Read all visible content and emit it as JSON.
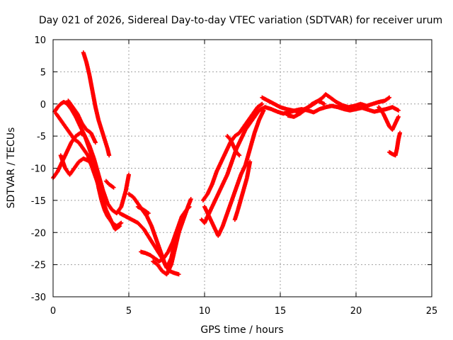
{
  "chart_data": {
    "type": "scatter",
    "title": "Day 021 of 2026, Sidereal Day-to-day VTEC variation (SDTVAR) for receiver urum",
    "xlabel": "GPS time / hours",
    "ylabel": "SDTVAR / TECUs",
    "xlim": [
      0,
      25
    ],
    "ylim": [
      -30,
      10
    ],
    "xticks": [
      "0",
      "5",
      "10",
      "15",
      "20",
      "25"
    ],
    "yticks": [
      "10",
      "5",
      "0",
      "-5",
      "-10",
      "-15",
      "-20",
      "-25",
      "-30"
    ],
    "grid": true,
    "legend": "none",
    "marker": "plus",
    "color": "#ff0000",
    "series": [
      {
        "values": [
          [
            2.0,
            8.0
          ],
          [
            2.2,
            6.5
          ],
          [
            2.4,
            4.5
          ],
          [
            2.6,
            2.0
          ],
          [
            2.8,
            -0.5
          ],
          [
            3.0,
            -2.5
          ],
          [
            3.2,
            -4.0
          ],
          [
            3.4,
            -5.5
          ],
          [
            3.6,
            -7.0
          ],
          [
            3.7,
            -8.0
          ]
        ]
      },
      {
        "values": [
          [
            0.1,
            -1.2
          ],
          [
            0.3,
            -0.5
          ],
          [
            0.5,
            0.0
          ],
          [
            0.7,
            0.3
          ],
          [
            0.9,
            0.1
          ],
          [
            1.2,
            -0.8
          ],
          [
            1.5,
            -2.0
          ],
          [
            1.8,
            -3.5
          ],
          [
            2.1,
            -5.0
          ],
          [
            2.4,
            -7.0
          ],
          [
            2.7,
            -9.0
          ],
          [
            2.9,
            -11.0
          ],
          [
            3.0,
            -13.0
          ],
          [
            3.2,
            -15.0
          ],
          [
            3.4,
            -16.5
          ],
          [
            3.6,
            -17.5
          ],
          [
            3.9,
            -18.5
          ],
          [
            4.2,
            -19.0
          ],
          [
            4.5,
            -18.5
          ]
        ]
      },
      {
        "values": [
          [
            0.0,
            -11.5
          ],
          [
            0.3,
            -10.5
          ],
          [
            0.6,
            -9.0
          ],
          [
            0.9,
            -7.5
          ],
          [
            1.2,
            -6.0
          ],
          [
            1.5,
            -5.0
          ],
          [
            1.8,
            -4.5
          ],
          [
            2.1,
            -5.0
          ],
          [
            2.4,
            -6.5
          ],
          [
            2.7,
            -8.5
          ],
          [
            3.0,
            -11.0
          ],
          [
            3.3,
            -13.5
          ],
          [
            3.6,
            -15.5
          ],
          [
            3.9,
            -16.5
          ],
          [
            4.2,
            -17.0
          ],
          [
            4.5,
            -16.0
          ],
          [
            4.8,
            -13.5
          ],
          [
            5.0,
            -11.0
          ]
        ]
      },
      {
        "values": [
          [
            0.2,
            -1.5
          ],
          [
            0.5,
            -2.5
          ],
          [
            0.8,
            -3.5
          ],
          [
            1.1,
            -4.5
          ],
          [
            1.4,
            -5.5
          ],
          [
            1.7,
            -6.0
          ],
          [
            2.0,
            -7.0
          ],
          [
            2.3,
            -8.0
          ],
          [
            2.6,
            -10.0
          ],
          [
            2.9,
            -12.0
          ],
          [
            3.2,
            -14.5
          ],
          [
            3.5,
            -16.5
          ],
          [
            3.8,
            -18.0
          ],
          [
            4.1,
            -19.5
          ],
          [
            4.4,
            -19.0
          ]
        ]
      },
      {
        "values": [
          [
            0.5,
            -8.0
          ],
          [
            0.8,
            -10.0
          ],
          [
            1.1,
            -11.0
          ],
          [
            1.4,
            -10.0
          ],
          [
            1.7,
            -9.0
          ],
          [
            2.0,
            -8.5
          ],
          [
            2.3,
            -8.8
          ],
          [
            2.6,
            -9.5
          ]
        ]
      },
      {
        "values": [
          [
            1.0,
            0.5
          ],
          [
            1.3,
            -0.5
          ],
          [
            1.6,
            -1.5
          ],
          [
            1.9,
            -3.0
          ],
          [
            2.2,
            -4.0
          ],
          [
            2.5,
            -4.5
          ],
          [
            2.8,
            -6.0
          ]
        ]
      },
      {
        "values": [
          [
            3.5,
            -12.0
          ],
          [
            3.7,
            -12.5
          ],
          [
            4.0,
            -13.0
          ]
        ]
      },
      {
        "values": [
          [
            4.4,
            -17.0
          ],
          [
            4.8,
            -17.5
          ],
          [
            5.2,
            -18.0
          ],
          [
            5.6,
            -18.5
          ],
          [
            6.0,
            -19.5
          ],
          [
            6.4,
            -21.0
          ],
          [
            6.8,
            -22.5
          ],
          [
            7.2,
            -24.0
          ],
          [
            7.5,
            -25.5
          ],
          [
            7.8,
            -24.0
          ],
          [
            8.0,
            -22.0
          ],
          [
            8.3,
            -20.0
          ],
          [
            8.6,
            -18.0
          ],
          [
            8.9,
            -16.0
          ],
          [
            9.1,
            -14.8
          ]
        ]
      },
      {
        "values": [
          [
            5.0,
            -14.0
          ],
          [
            5.3,
            -14.5
          ],
          [
            5.6,
            -15.5
          ],
          [
            5.9,
            -16.5
          ],
          [
            6.2,
            -17.5
          ],
          [
            6.5,
            -19.0
          ],
          [
            6.8,
            -21.0
          ],
          [
            7.1,
            -23.0
          ],
          [
            7.4,
            -25.0
          ],
          [
            7.7,
            -26.0
          ],
          [
            8.0,
            -26.3
          ],
          [
            8.3,
            -26.5
          ]
        ]
      },
      {
        "values": [
          [
            5.6,
            -16.0
          ],
          [
            6.0,
            -16.5
          ],
          [
            6.3,
            -17.0
          ]
        ]
      },
      {
        "values": [
          [
            5.8,
            -23.0
          ],
          [
            6.1,
            -23.2
          ],
          [
            6.4,
            -23.5
          ],
          [
            6.7,
            -24.0
          ],
          [
            7.0,
            -24.5
          ],
          [
            7.3,
            -24.0
          ],
          [
            7.6,
            -23.0
          ],
          [
            7.9,
            -21.5
          ],
          [
            8.2,
            -19.5
          ],
          [
            8.5,
            -17.5
          ],
          [
            8.8,
            -16.5
          ],
          [
            9.0,
            -16.0
          ]
        ]
      },
      {
        "values": [
          [
            6.6,
            -24.5
          ],
          [
            6.9,
            -25.0
          ],
          [
            7.2,
            -26.0
          ],
          [
            7.5,
            -26.5
          ],
          [
            7.8,
            -25.0
          ],
          [
            8.0,
            -23.0
          ],
          [
            8.2,
            -21.0
          ],
          [
            8.4,
            -19.0
          ],
          [
            8.6,
            -17.5
          ]
        ]
      },
      {
        "values": [
          [
            9.8,
            -18.0
          ],
          [
            10.0,
            -18.5
          ],
          [
            10.3,
            -17.0
          ],
          [
            10.6,
            -15.5
          ],
          [
            10.9,
            -14.0
          ],
          [
            11.2,
            -12.5
          ],
          [
            11.5,
            -11.0
          ],
          [
            11.8,
            -9.0
          ],
          [
            12.1,
            -7.0
          ],
          [
            12.4,
            -5.5
          ],
          [
            12.7,
            -4.0
          ],
          [
            13.0,
            -3.0
          ],
          [
            13.3,
            -2.0
          ],
          [
            13.6,
            -1.0
          ],
          [
            14.0,
            -0.5
          ]
        ]
      },
      {
        "values": [
          [
            9.9,
            -15.0
          ],
          [
            10.2,
            -14.0
          ],
          [
            10.5,
            -12.5
          ],
          [
            10.8,
            -10.5
          ],
          [
            11.1,
            -9.0
          ],
          [
            11.4,
            -7.5
          ],
          [
            11.7,
            -6.0
          ],
          [
            12.0,
            -5.0
          ],
          [
            12.3,
            -4.5
          ],
          [
            12.6,
            -3.5
          ],
          [
            12.9,
            -2.5
          ],
          [
            13.2,
            -1.5
          ],
          [
            13.5,
            -0.5
          ],
          [
            13.8,
            0.0
          ]
        ]
      },
      {
        "values": [
          [
            10.0,
            -16.0
          ],
          [
            10.3,
            -17.5
          ],
          [
            10.6,
            -19.0
          ],
          [
            10.9,
            -20.5
          ],
          [
            11.2,
            -19.0
          ],
          [
            11.5,
            -17.0
          ],
          [
            11.8,
            -15.0
          ],
          [
            12.1,
            -13.0
          ],
          [
            12.4,
            -11.0
          ],
          [
            12.7,
            -9.5
          ],
          [
            13.0,
            -7.0
          ],
          [
            13.3,
            -4.5
          ],
          [
            13.6,
            -2.5
          ],
          [
            13.9,
            -1.0
          ]
        ]
      },
      {
        "values": [
          [
            11.5,
            -5.0
          ],
          [
            11.7,
            -5.5
          ],
          [
            11.9,
            -6.5
          ],
          [
            12.1,
            -7.5
          ],
          [
            12.3,
            -8.0
          ]
        ]
      },
      {
        "values": [
          [
            12.0,
            -18.0
          ],
          [
            12.2,
            -16.5
          ],
          [
            12.5,
            -14.0
          ],
          [
            12.8,
            -11.5
          ],
          [
            13.0,
            -9.0
          ]
        ]
      },
      {
        "values": [
          [
            13.8,
            1.0
          ],
          [
            14.2,
            0.5
          ],
          [
            14.6,
            0.0
          ],
          [
            15.0,
            -0.5
          ],
          [
            15.4,
            -0.8
          ],
          [
            15.8,
            -1.0
          ],
          [
            16.2,
            -1.2
          ],
          [
            16.6,
            -0.8
          ],
          [
            17.0,
            -0.3
          ],
          [
            17.4,
            0.3
          ],
          [
            17.8,
            1.0
          ],
          [
            18.0,
            1.5
          ],
          [
            18.3,
            1.0
          ],
          [
            18.7,
            0.3
          ],
          [
            19.1,
            -0.2
          ],
          [
            19.5,
            -0.5
          ],
          [
            19.9,
            -0.3
          ],
          [
            20.3,
            0.0
          ],
          [
            20.7,
            -0.3
          ],
          [
            21.1,
            0.0
          ],
          [
            21.5,
            0.3
          ],
          [
            21.9,
            0.5
          ],
          [
            22.2,
            1.0
          ]
        ]
      },
      {
        "values": [
          [
            14.0,
            -0.5
          ],
          [
            14.4,
            -0.8
          ],
          [
            14.8,
            -1.2
          ],
          [
            15.2,
            -1.5
          ],
          [
            15.6,
            -1.3
          ],
          [
            16.0,
            -1.0
          ],
          [
            16.4,
            -0.8
          ],
          [
            16.8,
            -1.0
          ],
          [
            17.2,
            -1.3
          ],
          [
            17.6,
            -0.8
          ],
          [
            18.0,
            -0.5
          ],
          [
            18.4,
            -0.3
          ],
          [
            18.8,
            -0.5
          ],
          [
            19.2,
            -0.8
          ],
          [
            19.6,
            -1.0
          ],
          [
            20.0,
            -0.8
          ],
          [
            20.4,
            -0.6
          ],
          [
            20.8,
            -0.9
          ],
          [
            21.2,
            -1.2
          ],
          [
            21.6,
            -1.0
          ],
          [
            22.0,
            -0.8
          ],
          [
            22.4,
            -0.5
          ],
          [
            22.8,
            -1.0
          ]
        ]
      },
      {
        "values": [
          [
            15.5,
            -1.8
          ],
          [
            15.9,
            -2.0
          ],
          [
            16.3,
            -1.5
          ],
          [
            16.7,
            -0.8
          ],
          [
            17.1,
            0.0
          ],
          [
            17.5,
            0.5
          ],
          [
            17.9,
            0.0
          ]
        ]
      },
      {
        "values": [
          [
            21.5,
            -0.5
          ],
          [
            21.8,
            -1.5
          ],
          [
            22.0,
            -2.5
          ],
          [
            22.2,
            -3.5
          ],
          [
            22.4,
            -4.0
          ],
          [
            22.6,
            -3.0
          ],
          [
            22.8,
            -2.0
          ]
        ]
      },
      {
        "values": [
          [
            22.2,
            -7.5
          ],
          [
            22.4,
            -7.8
          ],
          [
            22.6,
            -8.0
          ],
          [
            22.7,
            -7.0
          ],
          [
            22.8,
            -5.5
          ],
          [
            22.9,
            -4.5
          ]
        ]
      }
    ]
  }
}
